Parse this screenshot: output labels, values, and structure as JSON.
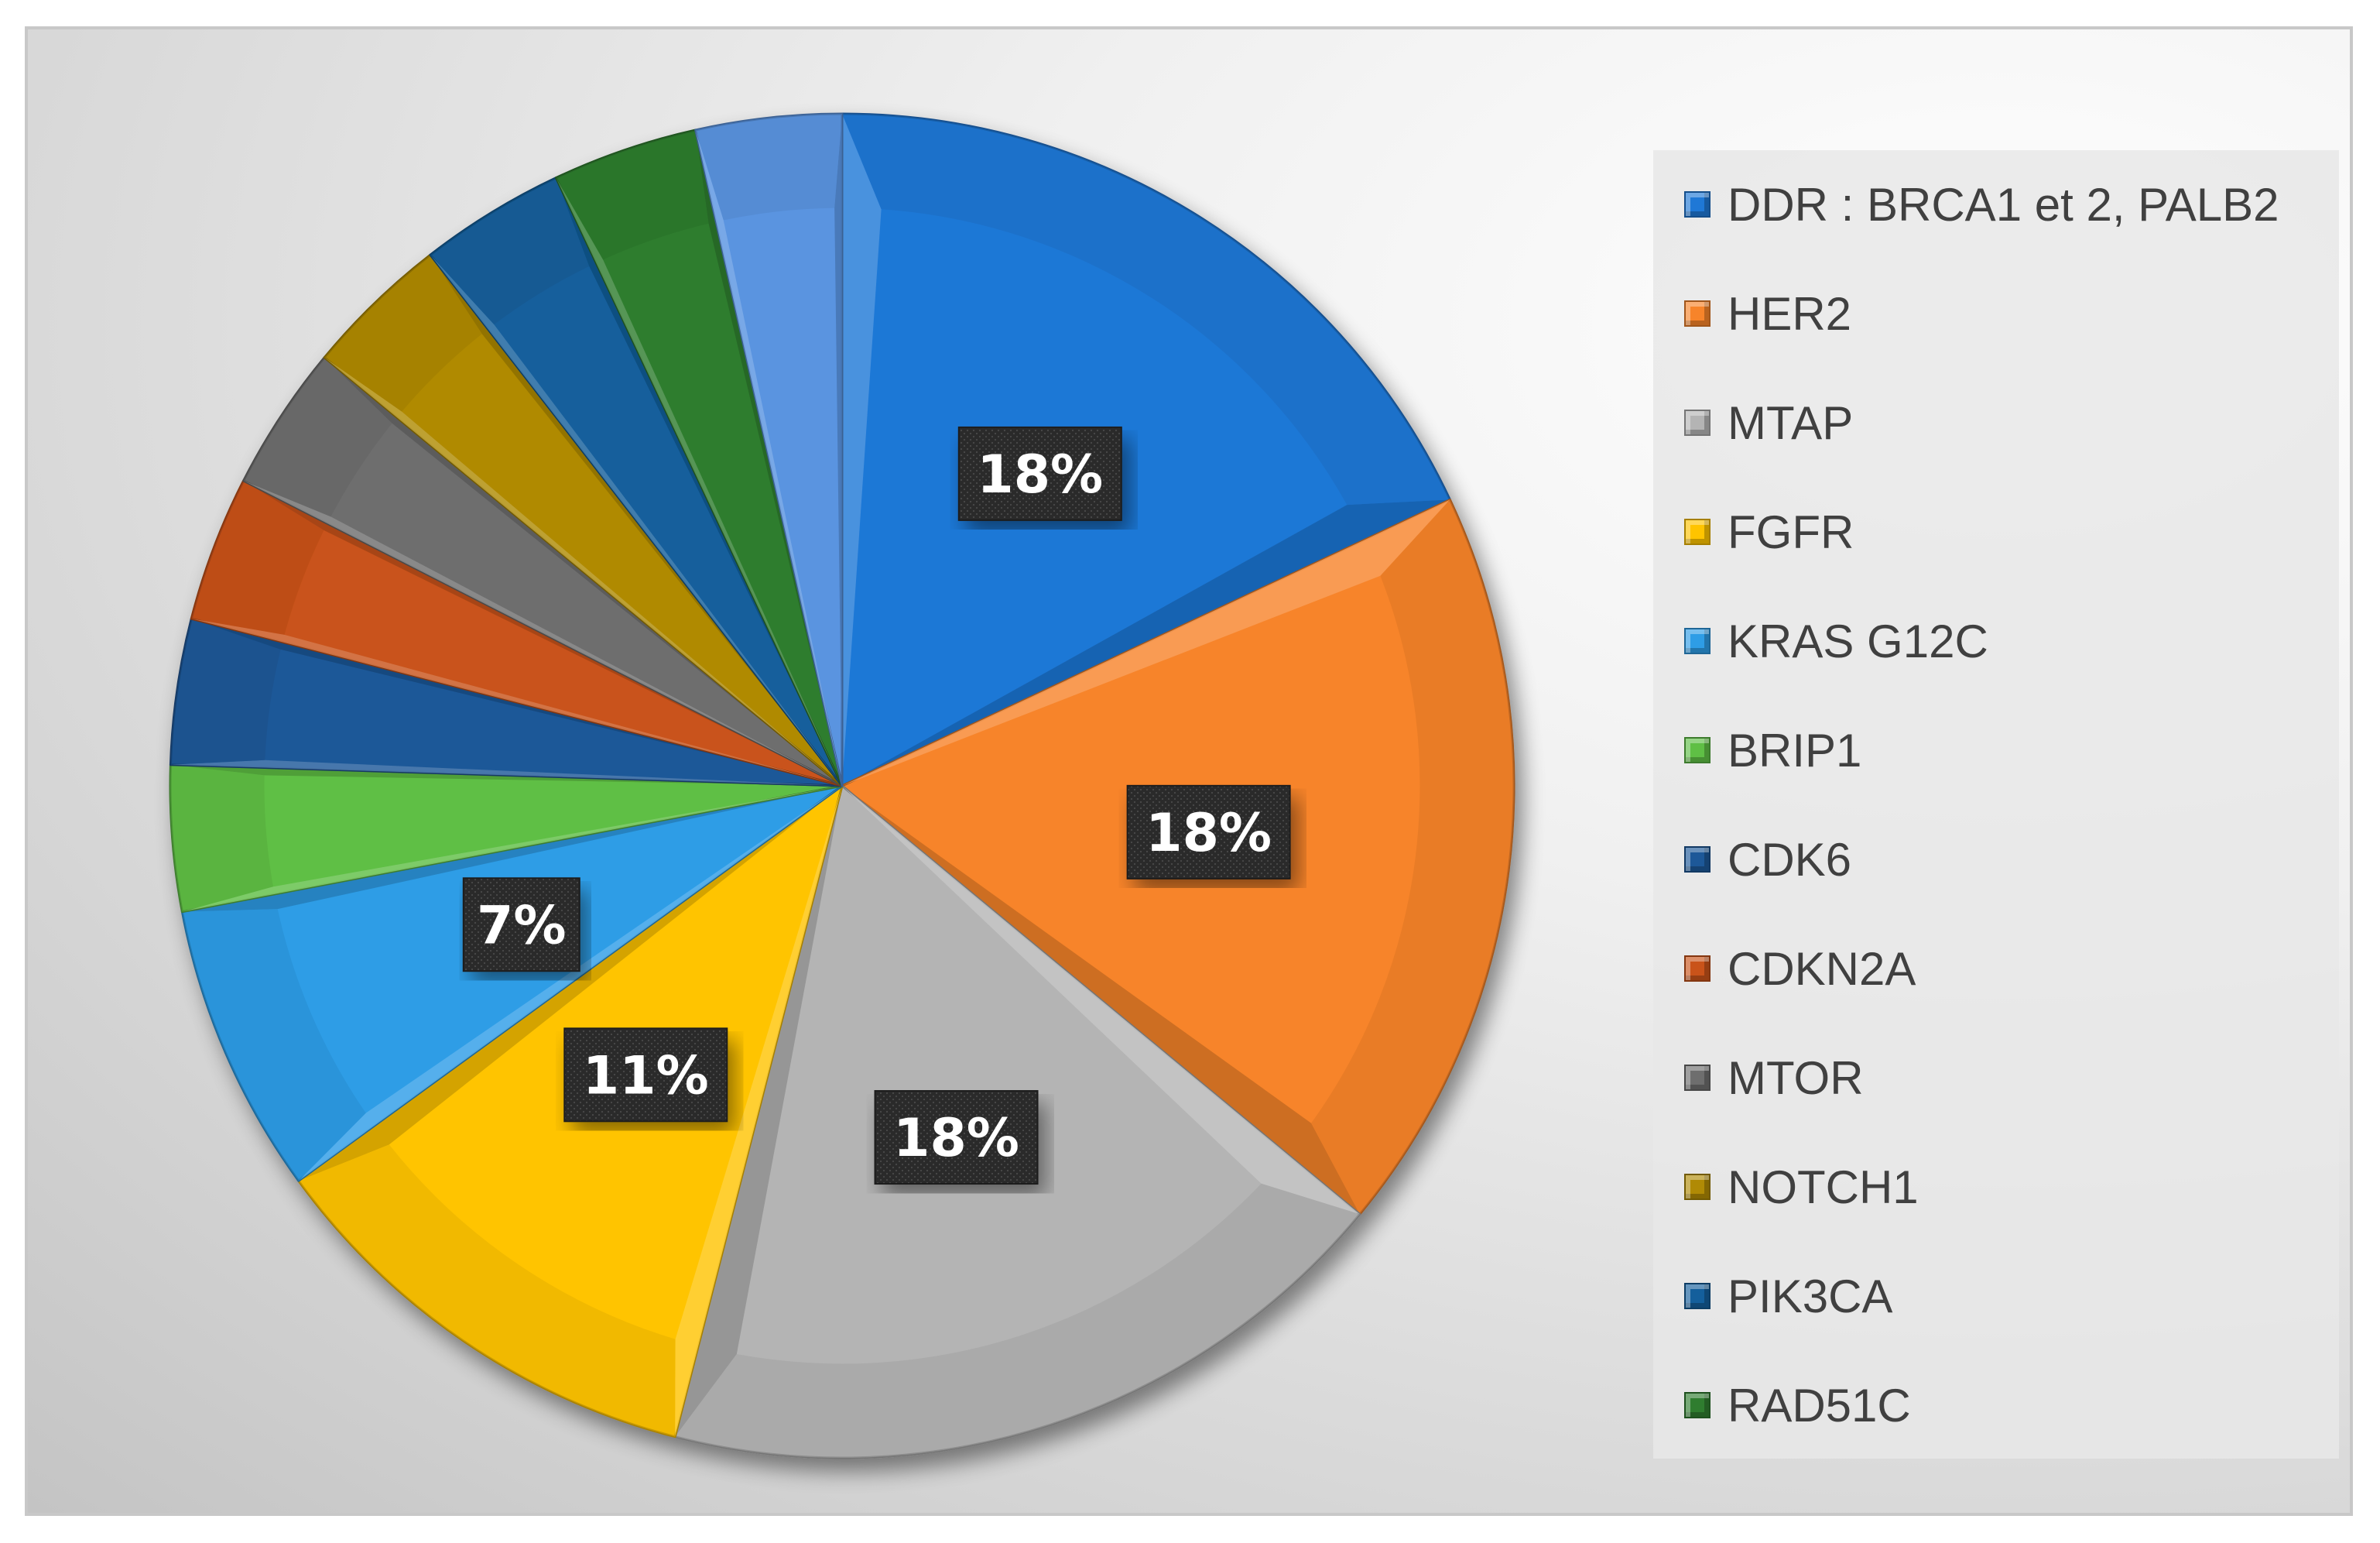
{
  "chart_data": {
    "type": "pie",
    "title": "",
    "slices": [
      {
        "label": "DDR : BRCA1 et 2, PALB2",
        "value": 18,
        "data_label": "18%",
        "color": "#1f78d6"
      },
      {
        "label": "HER2",
        "value": 18,
        "data_label": "18%",
        "color": "#f7842a"
      },
      {
        "label": "MTAP",
        "value": 18,
        "data_label": "18%",
        "color": "#b4b4b4"
      },
      {
        "label": "FGFR",
        "value": 11,
        "data_label": "11%",
        "color": "#ffc400"
      },
      {
        "label": "KRAS G12C",
        "value": 7,
        "data_label": "7%",
        "color": "#2e9de6"
      },
      {
        "label": "BRIP1",
        "value": 3.5,
        "data_label": "",
        "color": "#5fbf45"
      },
      {
        "label": "CDK6",
        "value": 3.5,
        "data_label": "",
        "color": "#1d5898"
      },
      {
        "label": "CDKN2A",
        "value": 3.5,
        "data_label": "",
        "color": "#c9531a"
      },
      {
        "label": "MTOR",
        "value": 3.5,
        "data_label": "",
        "color": "#6e6e6e"
      },
      {
        "label": "NOTCH1",
        "value": 3.5,
        "data_label": "",
        "color": "#b08a05"
      },
      {
        "label": "PIK3CA",
        "value": 3.5,
        "data_label": "",
        "color": "#145f9c"
      },
      {
        "label": "RAD51C",
        "value": 3.5,
        "data_label": "",
        "color": "#2f7d2f"
      },
      {
        "label": "",
        "value": 3.5,
        "data_label": "",
        "color": "#5a94e0"
      }
    ],
    "legend_position": "right"
  }
}
